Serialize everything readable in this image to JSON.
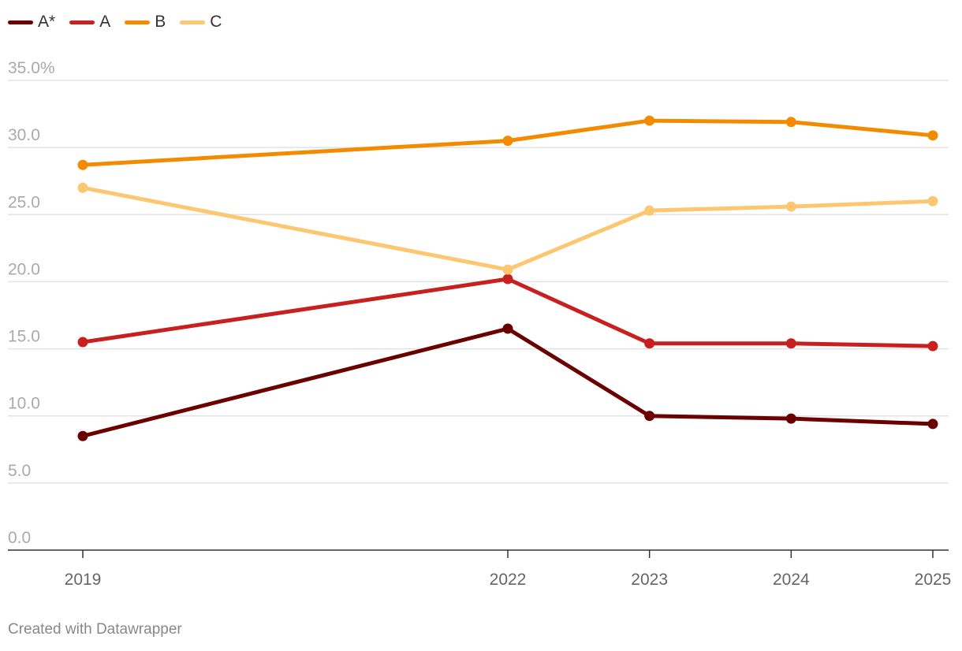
{
  "chart_data": {
    "type": "line",
    "title": "",
    "xlabel": "",
    "ylabel": "",
    "x": [
      2019,
      2022,
      2023,
      2024,
      2025
    ],
    "x_tick_labels": [
      "2019",
      "2022",
      "2023",
      "2024",
      "2025"
    ],
    "ylim": [
      0,
      35
    ],
    "y_ticks": [
      0,
      5,
      10,
      15,
      20,
      25,
      30,
      35
    ],
    "y_tick_labels": [
      "0.0",
      "5.0",
      "10.0",
      "15.0",
      "20.0",
      "25.0",
      "30.0",
      "35.0%"
    ],
    "grid": true,
    "legend_position": "top-left",
    "series": [
      {
        "name": "A*",
        "color": "#6b0000",
        "values": [
          8.5,
          16.5,
          10.0,
          9.8,
          9.4
        ]
      },
      {
        "name": "A",
        "color": "#c8201f",
        "values": [
          15.5,
          20.2,
          15.4,
          15.4,
          15.2
        ]
      },
      {
        "name": "B",
        "color": "#f38b00",
        "values": [
          28.7,
          30.5,
          32.0,
          31.9,
          30.9
        ]
      },
      {
        "name": "C",
        "color": "#fdc771",
        "values": [
          27.0,
          20.9,
          25.3,
          25.6,
          26.0
        ]
      }
    ]
  },
  "footer": {
    "credit": "Created with Datawrapper"
  }
}
